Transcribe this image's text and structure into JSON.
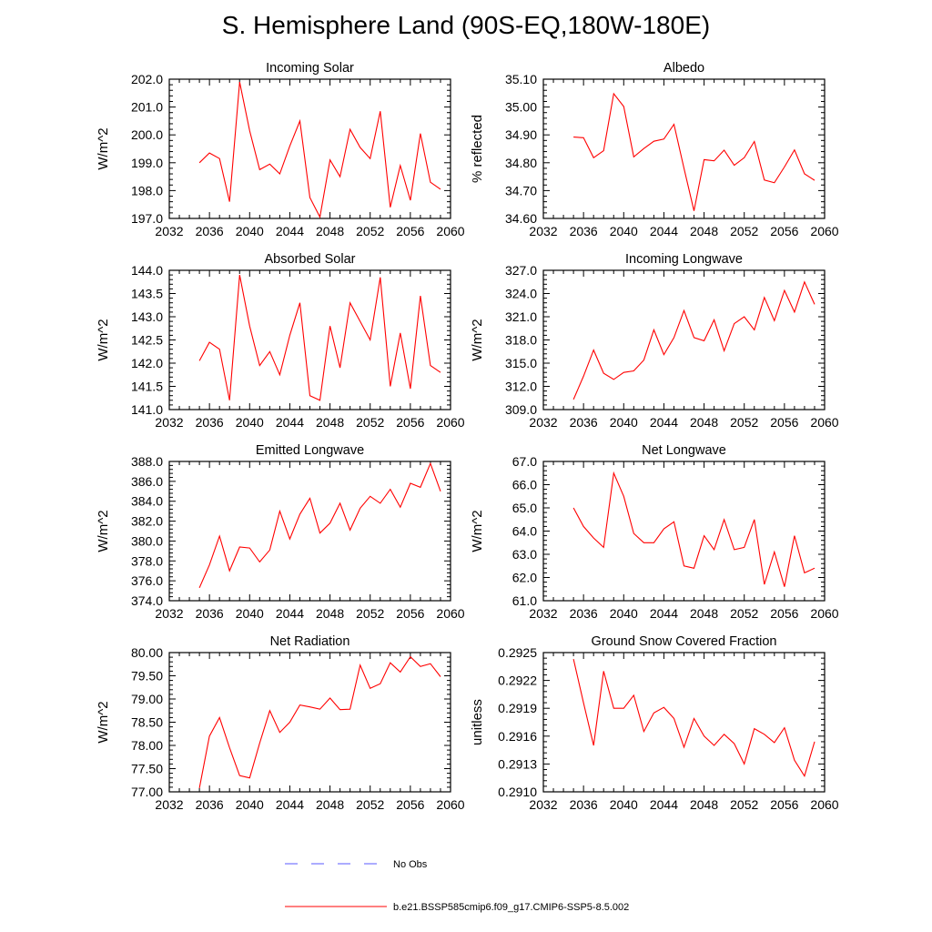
{
  "title": "S. Hemisphere Land (90S-EQ,180W-180E)",
  "colors": {
    "model": "#ff0000",
    "obs": "#5a5aff",
    "axis": "#000000"
  },
  "legend": {
    "obs_label": "No Obs",
    "model_label": "b.e21.BSSP585cmip6.f09_g17.CMIP6-SSP5-8.5.002"
  },
  "chart_data": [
    {
      "type": "line",
      "title": "Incoming Solar",
      "ylabel": "W/m^2",
      "xlim": [
        2032,
        2060
      ],
      "xticks": [
        2032,
        2036,
        2040,
        2044,
        2048,
        2052,
        2056,
        2060
      ],
      "ylim": [
        197.0,
        202.0
      ],
      "yticks": [
        "197.0",
        "198.0",
        "199.0",
        "200.0",
        "201.0",
        "202.0"
      ],
      "x": [
        2035,
        2036,
        2037,
        2038,
        2039,
        2040,
        2041,
        2042,
        2043,
        2044,
        2045,
        2046,
        2047,
        2048,
        2049,
        2050,
        2051,
        2052,
        2053,
        2054,
        2055,
        2056,
        2057,
        2058,
        2059
      ],
      "series": [
        {
          "values": [
            199.0,
            199.35,
            199.15,
            197.6,
            201.9,
            200.15,
            198.75,
            198.95,
            198.6,
            199.6,
            200.5,
            197.75,
            197.05,
            199.1,
            198.5,
            200.2,
            199.55,
            199.15,
            200.85,
            197.4,
            198.9,
            197.65,
            200.05,
            198.3,
            198.05
          ]
        }
      ]
    },
    {
      "type": "line",
      "title": "Albedo",
      "ylabel": "% reflected",
      "xlim": [
        2032,
        2060
      ],
      "xticks": [
        2032,
        2036,
        2040,
        2044,
        2048,
        2052,
        2056,
        2060
      ],
      "ylim": [
        34.6,
        35.1
      ],
      "yticks": [
        "34.60",
        "34.70",
        "34.80",
        "34.90",
        "35.00",
        "35.10"
      ],
      "x": [
        2035,
        2036,
        2037,
        2038,
        2039,
        2040,
        2041,
        2042,
        2043,
        2044,
        2045,
        2046,
        2047,
        2048,
        2049,
        2050,
        2051,
        2052,
        2053,
        2054,
        2055,
        2056,
        2057,
        2058,
        2059
      ],
      "series": [
        {
          "values": [
            34.892,
            34.89,
            34.818,
            34.843,
            35.048,
            35.002,
            34.821,
            34.851,
            34.877,
            34.885,
            34.938,
            34.78,
            34.627,
            34.811,
            34.807,
            34.845,
            34.791,
            34.818,
            34.876,
            34.738,
            34.728,
            34.785,
            34.846,
            34.76,
            34.737
          ]
        }
      ]
    },
    {
      "type": "line",
      "title": "Absorbed Solar",
      "ylabel": "W/m^2",
      "xlim": [
        2032,
        2060
      ],
      "xticks": [
        2032,
        2036,
        2040,
        2044,
        2048,
        2052,
        2056,
        2060
      ],
      "ylim": [
        141.0,
        144.0
      ],
      "yticks": [
        "141.0",
        "141.5",
        "142.0",
        "142.5",
        "143.0",
        "143.5",
        "144.0"
      ],
      "x": [
        2035,
        2036,
        2037,
        2038,
        2039,
        2040,
        2041,
        2042,
        2043,
        2044,
        2045,
        2046,
        2047,
        2048,
        2049,
        2050,
        2051,
        2052,
        2053,
        2054,
        2055,
        2056,
        2057,
        2058,
        2059
      ],
      "series": [
        {
          "values": [
            142.05,
            142.45,
            142.3,
            141.2,
            143.9,
            142.8,
            141.95,
            142.25,
            141.75,
            142.6,
            143.3,
            141.3,
            141.2,
            142.8,
            141.9,
            143.3,
            142.9,
            142.5,
            143.85,
            141.5,
            142.65,
            141.45,
            143.45,
            141.95,
            141.8
          ]
        }
      ]
    },
    {
      "type": "line",
      "title": "Incoming Longwave",
      "ylabel": "W/m^2",
      "xlim": [
        2032,
        2060
      ],
      "xticks": [
        2032,
        2036,
        2040,
        2044,
        2048,
        2052,
        2056,
        2060
      ],
      "ylim": [
        309.0,
        327.0
      ],
      "yticks": [
        "309.0",
        "312.0",
        "315.0",
        "318.0",
        "321.0",
        "324.0",
        "327.0"
      ],
      "x": [
        2035,
        2036,
        2037,
        2038,
        2039,
        2040,
        2041,
        2042,
        2043,
        2044,
        2045,
        2046,
        2047,
        2048,
        2049,
        2050,
        2051,
        2052,
        2053,
        2054,
        2055,
        2056,
        2057,
        2058,
        2059
      ],
      "series": [
        {
          "values": [
            310.3,
            313.3,
            316.7,
            313.7,
            312.9,
            313.8,
            314.0,
            315.4,
            319.3,
            316.1,
            318.3,
            321.8,
            318.3,
            317.9,
            320.6,
            316.6,
            320.1,
            321.0,
            319.3,
            323.5,
            320.5,
            324.4,
            321.6,
            325.5,
            322.6
          ]
        }
      ]
    },
    {
      "type": "line",
      "title": "Emitted Longwave",
      "ylabel": "W/m^2",
      "xlim": [
        2032,
        2060
      ],
      "xticks": [
        2032,
        2036,
        2040,
        2044,
        2048,
        2052,
        2056,
        2060
      ],
      "ylim": [
        374.0,
        388.0
      ],
      "yticks": [
        "374.0",
        "376.0",
        "378.0",
        "380.0",
        "382.0",
        "384.0",
        "386.0",
        "388.0"
      ],
      "x": [
        2035,
        2036,
        2037,
        2038,
        2039,
        2040,
        2041,
        2042,
        2043,
        2044,
        2045,
        2046,
        2047,
        2048,
        2049,
        2050,
        2051,
        2052,
        2053,
        2054,
        2055,
        2056,
        2057,
        2058,
        2059
      ],
      "series": [
        {
          "values": [
            375.3,
            377.6,
            380.5,
            377.0,
            379.4,
            379.3,
            377.9,
            379.1,
            383.0,
            380.2,
            382.7,
            384.3,
            380.8,
            381.8,
            383.8,
            381.1,
            383.3,
            384.5,
            383.8,
            385.2,
            383.4,
            385.8,
            385.4,
            387.8,
            385.0
          ]
        }
      ]
    },
    {
      "type": "line",
      "title": "Net Longwave",
      "ylabel": "W/m^2",
      "xlim": [
        2032,
        2060
      ],
      "xticks": [
        2032,
        2036,
        2040,
        2044,
        2048,
        2052,
        2056,
        2060
      ],
      "ylim": [
        61.0,
        67.0
      ],
      "yticks": [
        "61.0",
        "62.0",
        "63.0",
        "64.0",
        "65.0",
        "66.0",
        "67.0"
      ],
      "x": [
        2035,
        2036,
        2037,
        2038,
        2039,
        2040,
        2041,
        2042,
        2043,
        2044,
        2045,
        2046,
        2047,
        2048,
        2049,
        2050,
        2051,
        2052,
        2053,
        2054,
        2055,
        2056,
        2057,
        2058,
        2059
      ],
      "series": [
        {
          "values": [
            65.0,
            64.2,
            63.7,
            63.3,
            66.5,
            65.5,
            63.9,
            63.5,
            63.5,
            64.1,
            64.4,
            62.5,
            62.4,
            63.8,
            63.2,
            64.5,
            63.2,
            63.3,
            64.5,
            61.7,
            63.1,
            61.6,
            63.8,
            62.2,
            62.4
          ]
        }
      ]
    },
    {
      "type": "line",
      "title": "Net Radiation",
      "ylabel": "W/m^2",
      "xlim": [
        2032,
        2060
      ],
      "xticks": [
        2032,
        2036,
        2040,
        2044,
        2048,
        2052,
        2056,
        2060
      ],
      "ylim": [
        77.0,
        80.0
      ],
      "yticks": [
        "77.00",
        "77.50",
        "78.00",
        "78.50",
        "79.00",
        "79.50",
        "80.00"
      ],
      "x": [
        2035,
        2036,
        2037,
        2038,
        2039,
        2040,
        2041,
        2042,
        2043,
        2044,
        2045,
        2046,
        2047,
        2048,
        2049,
        2050,
        2051,
        2052,
        2053,
        2054,
        2055,
        2056,
        2057,
        2058,
        2059
      ],
      "series": [
        {
          "values": [
            77.08,
            78.2,
            78.6,
            77.95,
            77.35,
            77.3,
            78.05,
            78.75,
            78.28,
            78.5,
            78.87,
            78.83,
            78.78,
            79.02,
            78.77,
            78.78,
            79.73,
            79.23,
            79.33,
            79.78,
            79.58,
            79.91,
            79.7,
            79.76,
            79.48
          ]
        }
      ]
    },
    {
      "type": "line",
      "title": "Ground Snow Covered Fraction",
      "ylabel": "unitless",
      "xlim": [
        2032,
        2060
      ],
      "xticks": [
        2032,
        2036,
        2040,
        2044,
        2048,
        2052,
        2056,
        2060
      ],
      "ylim": [
        0.291,
        0.2925
      ],
      "yticks": [
        "0.2910",
        "0.2913",
        "0.2916",
        "0.2919",
        "0.2922",
        "0.2925"
      ],
      "x": [
        2035,
        2036,
        2037,
        2038,
        2039,
        2040,
        2041,
        2042,
        2043,
        2044,
        2045,
        2046,
        2047,
        2048,
        2049,
        2050,
        2051,
        2052,
        2053,
        2054,
        2055,
        2056,
        2057,
        2058,
        2059
      ],
      "series": [
        {
          "values": [
            0.29243,
            0.29196,
            0.2915,
            0.2923,
            0.2919,
            0.2919,
            0.29204,
            0.29165,
            0.29185,
            0.29191,
            0.29179,
            0.29148,
            0.29179,
            0.2916,
            0.2915,
            0.29162,
            0.29152,
            0.2913,
            0.29168,
            0.29162,
            0.29153,
            0.29169,
            0.29134,
            0.29117,
            0.29154
          ]
        }
      ]
    }
  ]
}
